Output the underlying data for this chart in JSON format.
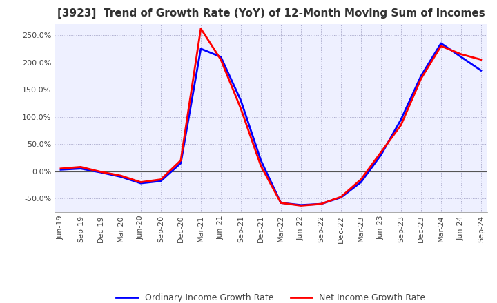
{
  "title": "[3923]  Trend of Growth Rate (YoY) of 12-Month Moving Sum of Incomes",
  "legend_labels": [
    "Ordinary Income Growth Rate",
    "Net Income Growth Rate"
  ],
  "line_colors": [
    "#0000FF",
    "#FF0000"
  ],
  "line_width": 2.0,
  "ylim": [
    -75,
    270
  ],
  "yticks": [
    -50,
    0,
    50,
    100,
    150,
    200,
    250
  ],
  "background_color": "#FFFFFF",
  "plot_bg_color": "#EEF0FF",
  "grid_color": "#AAAACC",
  "x_labels": [
    "Jun-19",
    "Sep-19",
    "Dec-19",
    "Mar-20",
    "Jun-20",
    "Sep-20",
    "Dec-20",
    "Mar-21",
    "Jun-21",
    "Sep-21",
    "Dec-21",
    "Mar-22",
    "Jun-22",
    "Sep-22",
    "Dec-22",
    "Mar-23",
    "Jun-23",
    "Sep-23",
    "Dec-23",
    "Mar-24",
    "Jun-24",
    "Sep-24"
  ],
  "ordinary_income": [
    3.0,
    5.0,
    -2.0,
    -10.0,
    -22.0,
    -18.0,
    15.0,
    225.0,
    210.0,
    130.0,
    20.0,
    -58.0,
    -62.0,
    -60.0,
    -48.0,
    -20.0,
    30.0,
    95.0,
    175.0,
    235.0,
    210.0,
    185.0
  ],
  "net_income": [
    5.0,
    8.0,
    -1.0,
    -8.0,
    -20.0,
    -15.0,
    20.0,
    262.0,
    205.0,
    115.0,
    10.0,
    -58.0,
    -63.0,
    -60.0,
    -47.0,
    -15.0,
    35.0,
    85.0,
    170.0,
    230.0,
    215.0,
    205.0
  ],
  "title_fontsize": 11,
  "tick_fontsize": 8,
  "legend_fontsize": 9
}
